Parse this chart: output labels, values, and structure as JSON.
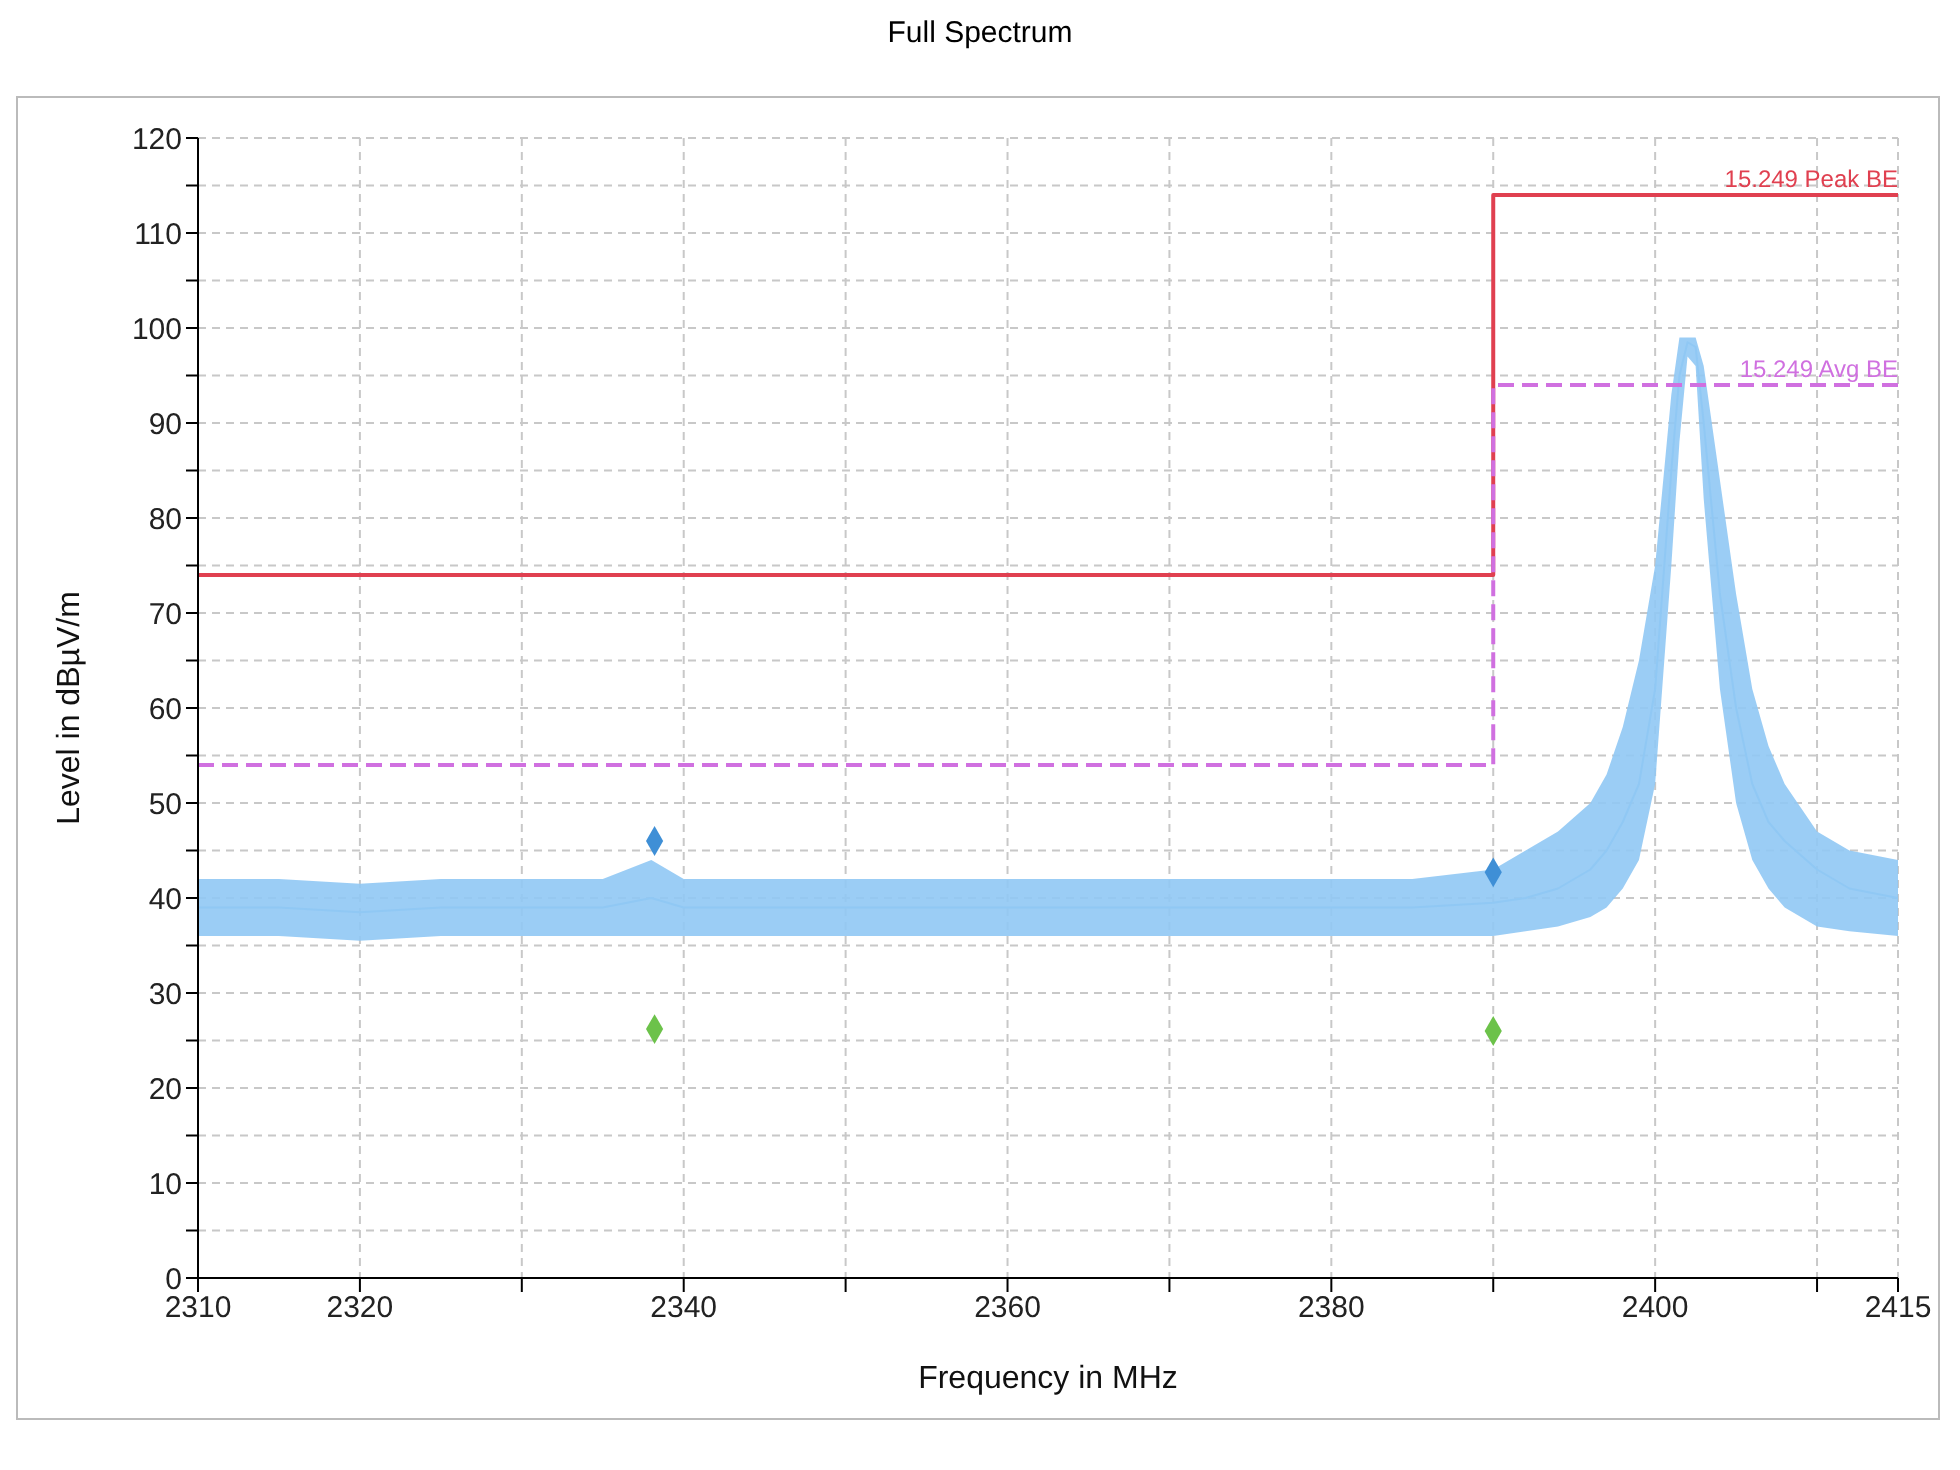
{
  "chart_data": {
    "type": "line",
    "title": "Full Spectrum",
    "xlabel": "Frequency in MHz",
    "ylabel": "Level in dBµV/m",
    "xlim": [
      2310,
      2415
    ],
    "xticks": [
      2310,
      2320,
      {
        "value": 2330,
        "label": null
      },
      2340,
      {
        "value": 2350,
        "label": null
      },
      2360,
      {
        "value": 2370,
        "label": null
      },
      2380,
      {
        "value": 2390,
        "label": null
      },
      2400,
      {
        "value": 2410,
        "label": null
      },
      2415
    ],
    "ylim": [
      0,
      120
    ],
    "yticks": [
      0,
      {
        "value": 5,
        "label": null
      },
      10,
      {
        "value": 15,
        "label": null
      },
      20,
      {
        "value": 25,
        "label": null
      },
      30,
      {
        "value": 35,
        "label": null
      },
      40,
      {
        "value": 45,
        "label": null
      },
      50,
      {
        "value": 55,
        "label": null
      },
      60,
      {
        "value": 65,
        "label": null
      },
      70,
      {
        "value": 75,
        "label": null
      },
      80,
      {
        "value": 85,
        "label": null
      },
      90,
      {
        "value": 95,
        "label": null
      },
      100,
      {
        "value": 105,
        "label": null
      },
      110,
      {
        "value": 115,
        "label": null
      },
      120
    ],
    "grid": true,
    "series": [
      {
        "color": "#90c8f4",
        "marker": "none",
        "x": [
          2310,
          2315,
          2320,
          2325,
          2330,
          2335,
          2338,
          2340,
          2345,
          2350,
          2355,
          2360,
          2365,
          2370,
          2375,
          2380,
          2385,
          2390,
          2392,
          2394,
          2396,
          2397,
          2398,
          2399,
          2400,
          2401,
          2401.5,
          2402,
          2402.5,
          2403,
          2404,
          2405,
          2406,
          2407,
          2408,
          2410,
          2412,
          2415
        ],
        "values": [
          39,
          39,
          38.5,
          39,
          39,
          39,
          40,
          39,
          39,
          39,
          39,
          39,
          39,
          39,
          39,
          39,
          39,
          39.5,
          40,
          41,
          43,
          45,
          48,
          52,
          62,
          85,
          95,
          98.5,
          98,
          90,
          72,
          60,
          52,
          48,
          46,
          43,
          41,
          40
        ],
        "lower": [
          36,
          36,
          35.5,
          36,
          36,
          36,
          36,
          36,
          36,
          36,
          36,
          36,
          36,
          36,
          36,
          36,
          36,
          36,
          36.5,
          37,
          38,
          39,
          41,
          44,
          52,
          75,
          88,
          97,
          96,
          82,
          62,
          50,
          44,
          41,
          39,
          37,
          36.5,
          36
        ],
        "upper": [
          42,
          42,
          41.5,
          42,
          42,
          42,
          44,
          42,
          42,
          42,
          42,
          42,
          42,
          42,
          42,
          42,
          42,
          43,
          45,
          47,
          50,
          53,
          58,
          65,
          75,
          93,
          99,
          99,
          99,
          96,
          84,
          72,
          62,
          56,
          52,
          47,
          45,
          44
        ]
      },
      {
        "type": "step",
        "name": "15.249 Peak BE",
        "color": "#e04050",
        "line_style": "solid",
        "marker": "none",
        "x": [
          2310,
          2390,
          2415
        ],
        "values": [
          74,
          114,
          114
        ]
      },
      {
        "type": "step",
        "name": "15.249 Avg BE",
        "color": "#d070e0",
        "line_style": "dashed",
        "marker": "none",
        "x": [
          2310,
          2390,
          2415
        ],
        "values": [
          54,
          94,
          94
        ]
      },
      {
        "type": "scatter",
        "color": "#3f8fd6",
        "marker": "diamond",
        "x": [
          2338.2,
          2390
        ],
        "values": [
          46,
          42.7
        ]
      },
      {
        "type": "scatter",
        "color": "#6cc24a",
        "marker": "diamond",
        "x": [
          2338.2,
          2390
        ],
        "values": [
          26.2,
          26
        ]
      }
    ]
  }
}
